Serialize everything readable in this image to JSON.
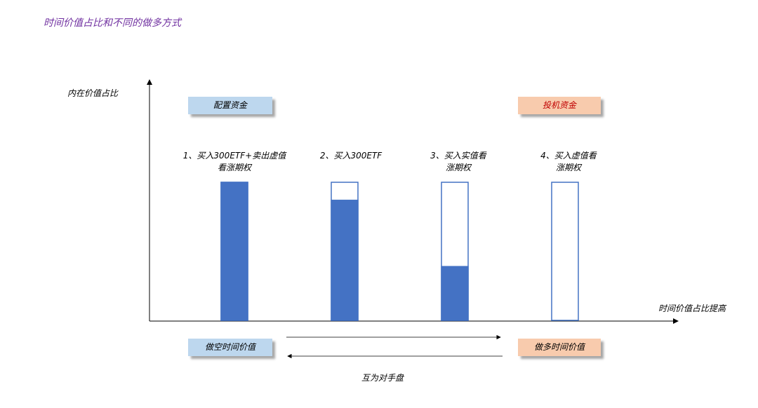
{
  "title": "时间价值占比和不同的做多方式",
  "y_axis_label": "内在价值占比",
  "x_axis_label": "时间价值占比提高",
  "boxes": {
    "allocation": "配置资金",
    "speculation": "投机资金",
    "short_time_value": "做空时间价值",
    "long_time_value": "做多时间价值"
  },
  "arrows_label": "互为对手盘",
  "strategies": [
    {
      "line1": "1、买入300ETF+卖出虚值",
      "line2": "看涨期权",
      "intrinsic_fraction": 1.0
    },
    {
      "line1": "2、买入300ETF",
      "line2": "",
      "intrinsic_fraction": 0.87
    },
    {
      "line1": "3、买入实值看",
      "line2": "涨期权",
      "intrinsic_fraction": 0.39
    },
    {
      "line1": "4、买入虚值看",
      "line2": "涨期权",
      "intrinsic_fraction": 0.0
    }
  ],
  "colors": {
    "title": "#7030A0",
    "bar_fill": "#4472C4",
    "bar_outline": "#4472C4",
    "blue_box": "#BDD7EE",
    "orange_box": "#F8CBAD",
    "speculation_text": "#C00000"
  }
}
